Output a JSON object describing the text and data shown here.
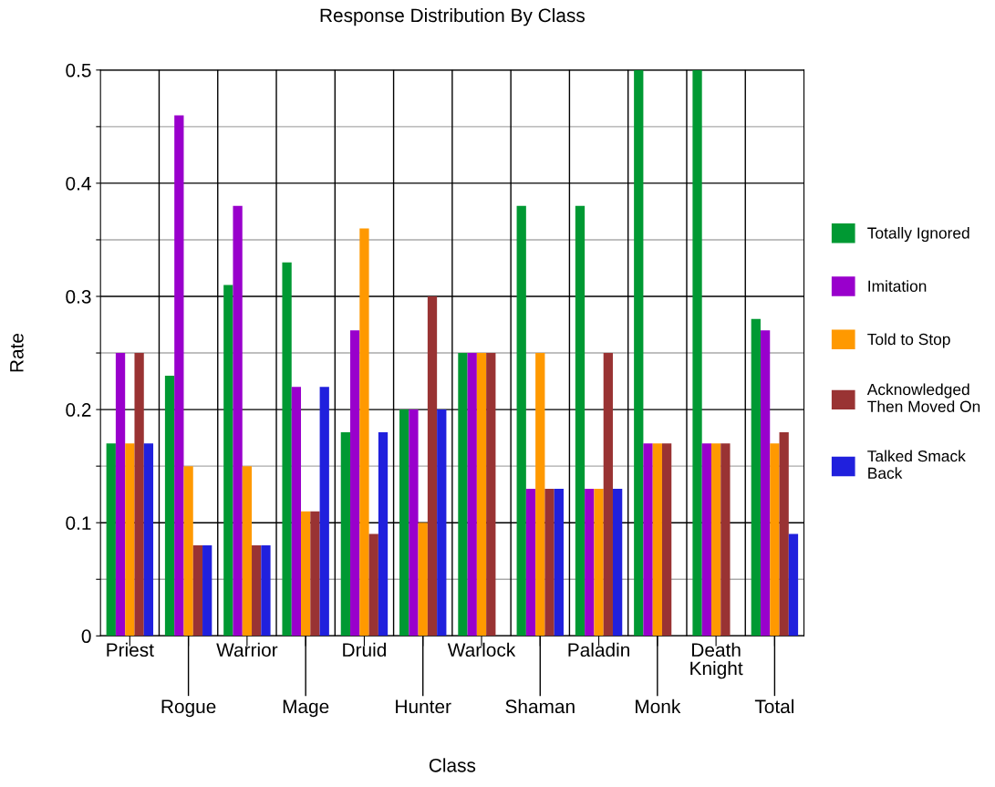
{
  "chart_data": {
    "type": "bar",
    "title": "Response Distribution By Class",
    "xlabel": "Class",
    "ylabel": "Rate",
    "categories": [
      "Priest",
      "Rogue",
      "Warrior",
      "Mage",
      "Druid",
      "Hunter",
      "Warlock",
      "Shaman",
      "Paladin",
      "Monk",
      "Death Knight",
      "Total"
    ],
    "series": [
      {
        "name": "Totally Ignored",
        "color": "#009933",
        "values": [
          0.17,
          0.23,
          0.31,
          0.33,
          0.18,
          0.2,
          0.25,
          0.38,
          0.38,
          0.5,
          0.5,
          0.28
        ]
      },
      {
        "name": "Imitation",
        "color": "#9900cc",
        "values": [
          0.25,
          0.46,
          0.38,
          0.22,
          0.27,
          0.2,
          0.25,
          0.13,
          0.13,
          0.17,
          0.17,
          0.27
        ]
      },
      {
        "name": "Told to Stop",
        "color": "#ff9900",
        "values": [
          0.17,
          0.15,
          0.15,
          0.11,
          0.36,
          0.1,
          0.25,
          0.25,
          0.13,
          0.17,
          0.17,
          0.17
        ]
      },
      {
        "name": "Acknowledged Then Moved On",
        "color": "#993333",
        "values": [
          0.25,
          0.08,
          0.08,
          0.11,
          0.09,
          0.3,
          0.25,
          0.13,
          0.25,
          0.17,
          0.17,
          0.18
        ]
      },
      {
        "name": "Talked Smack Back",
        "color": "#2020dd",
        "values": [
          0.17,
          0.08,
          0.08,
          0.22,
          0.18,
          0.2,
          null,
          0.13,
          0.13,
          null,
          null,
          0.09
        ]
      }
    ],
    "ylim": [
      0,
      0.5
    ],
    "yticks": [
      0,
      {
        "value": 0.05,
        "label": null
      },
      0.1,
      {
        "value": 0.15,
        "label": null
      },
      0.2,
      {
        "value": 0.25,
        "label": null
      },
      0.3,
      {
        "value": 0.35,
        "label": null
      },
      0.4,
      {
        "value": 0.45,
        "label": null
      },
      0.5
    ],
    "grid": true,
    "legend": "right"
  }
}
